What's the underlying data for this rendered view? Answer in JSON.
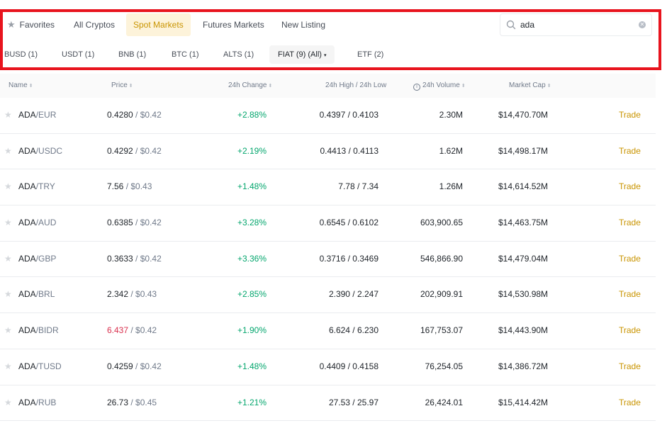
{
  "tabs": [
    {
      "label": "Favorites",
      "icon": "star-icon",
      "active": false
    },
    {
      "label": "All Cryptos",
      "active": false
    },
    {
      "label": "Spot Markets",
      "active": true
    },
    {
      "label": "Futures Markets",
      "active": false
    },
    {
      "label": "New Listing",
      "active": false
    }
  ],
  "search": {
    "value": "ada",
    "icon": "search-icon",
    "clear_icon": "clear-icon"
  },
  "subtabs": [
    {
      "label": "BUSD (1)"
    },
    {
      "label": "USDT (1)"
    },
    {
      "label": "BNB (1)"
    },
    {
      "label": "BTC (1)"
    },
    {
      "label": "ALTS (1)"
    },
    {
      "label": "FIAT (9) (All)",
      "active": true,
      "caret": "▾"
    },
    {
      "label": "ETF (2)"
    }
  ],
  "columns": {
    "name": "Name",
    "price": "Price",
    "change": "24h Change",
    "highlow": "24h High / 24h Low",
    "volume": "24h Volume",
    "marketcap": "Market Cap"
  },
  "rows": [
    {
      "base": "ADA",
      "quote": "/EUR",
      "price": "0.4280",
      "usd": "$0.42",
      "change": "+2.88%",
      "highlow": "0.4397 / 0.4103",
      "volume": "2.30M",
      "cap": "$14,470.70M",
      "action": "Trade"
    },
    {
      "base": "ADA",
      "quote": "/USDC",
      "price": "0.4292",
      "usd": "$0.42",
      "change": "+2.19%",
      "highlow": "0.4413 / 0.4113",
      "volume": "1.62M",
      "cap": "$14,498.17M",
      "action": "Trade"
    },
    {
      "base": "ADA",
      "quote": "/TRY",
      "price": "7.56",
      "usd": "$0.43",
      "change": "+1.48%",
      "highlow": "7.78 / 7.34",
      "volume": "1.26M",
      "cap": "$14,614.52M",
      "action": "Trade"
    },
    {
      "base": "ADA",
      "quote": "/AUD",
      "price": "0.6385",
      "usd": "$0.42",
      "change": "+3.28%",
      "highlow": "0.6545 / 0.6102",
      "volume": "603,900.65",
      "cap": "$14,463.75M",
      "action": "Trade"
    },
    {
      "base": "ADA",
      "quote": "/GBP",
      "price": "0.3633",
      "usd": "$0.42",
      "change": "+3.36%",
      "highlow": "0.3716 / 0.3469",
      "volume": "546,866.90",
      "cap": "$14,479.04M",
      "action": "Trade"
    },
    {
      "base": "ADA",
      "quote": "/BRL",
      "price": "2.342",
      "usd": "$0.43",
      "change": "+2.85%",
      "highlow": "2.390 / 2.247",
      "volume": "202,909.91",
      "cap": "$14,530.98M",
      "action": "Trade"
    },
    {
      "base": "ADA",
      "quote": "/BIDR",
      "price": "6.437",
      "price_color": "#d9304e",
      "usd": "$0.42",
      "change": "+1.90%",
      "highlow": "6.624 / 6.230",
      "volume": "167,753.07",
      "cap": "$14,443.90M",
      "action": "Trade"
    },
    {
      "base": "ADA",
      "quote": "/TUSD",
      "price": "0.4259",
      "usd": "$0.42",
      "change": "+1.48%",
      "highlow": "0.4409 / 0.4158",
      "volume": "76,254.05",
      "cap": "$14,386.72M",
      "action": "Trade"
    },
    {
      "base": "ADA",
      "quote": "/RUB",
      "price": "26.73",
      "usd": "$0.45",
      "change": "+1.21%",
      "highlow": "27.53 / 25.97",
      "volume": "26,424.01",
      "cap": "$15,414.42M",
      "action": "Trade"
    }
  ],
  "colors": {
    "accent": "#c99400",
    "positive": "#03a66d",
    "negative": "#d9304e",
    "highlight_frame": "#e8141e"
  }
}
